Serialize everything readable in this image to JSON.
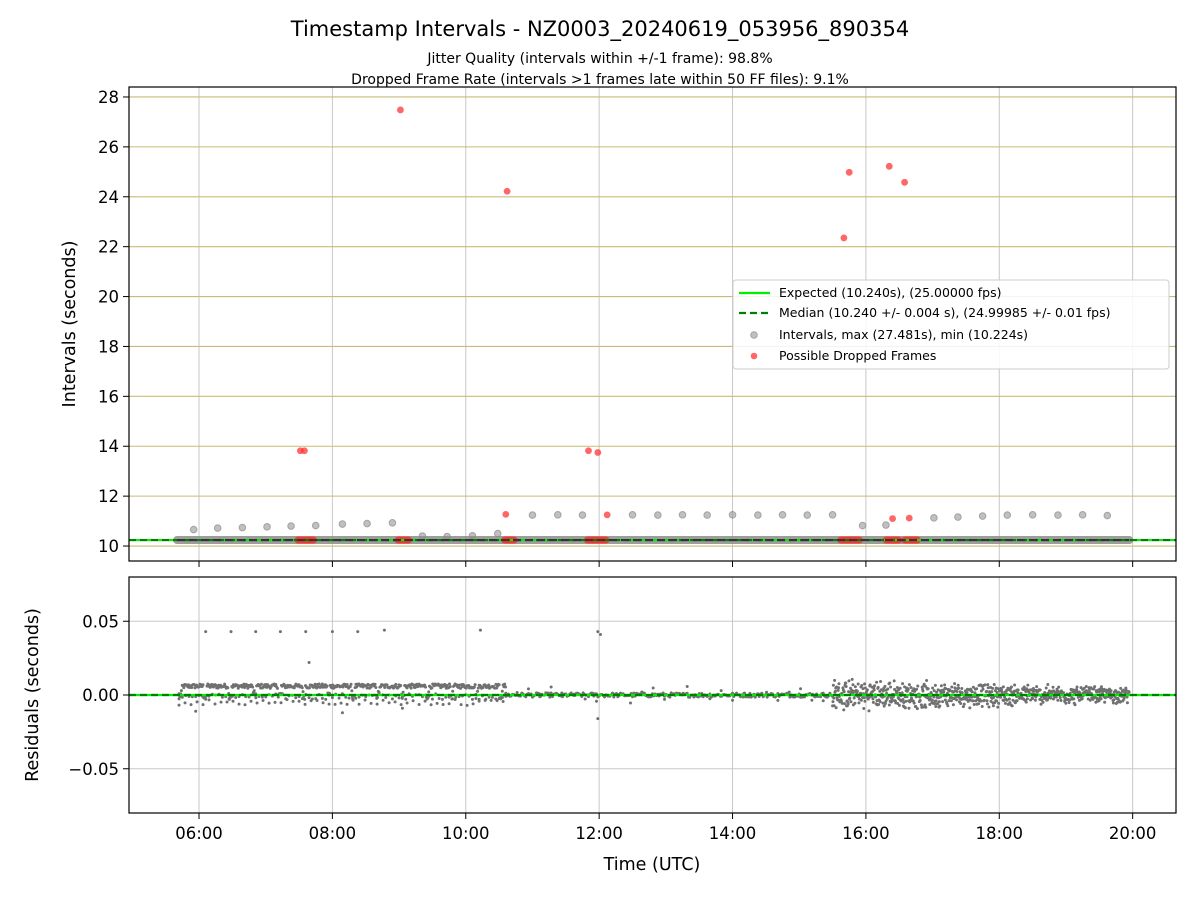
{
  "chart_data": {
    "title": "Timestamp Intervals - NZ0003_20240619_053956_890354",
    "subtitles": [
      "Jitter Quality (intervals within +/-1 frame): 98.8%",
      "Dropped Frame Rate (intervals >1 frames late within 50 FF files): 9.1%"
    ],
    "xlabel": "Time (UTC)",
    "xlim_hours": [
      4.95,
      20.65
    ],
    "x_ticks": [
      {
        "value": 6,
        "label": "06:00"
      },
      {
        "value": 8,
        "label": "08:00"
      },
      {
        "value": 10,
        "label": "10:00"
      },
      {
        "value": 12,
        "label": "12:00"
      },
      {
        "value": 14,
        "label": "14:00"
      },
      {
        "value": 16,
        "label": "16:00"
      },
      {
        "value": 18,
        "label": "18:00"
      },
      {
        "value": 20,
        "label": "20:00"
      }
    ],
    "panels": [
      {
        "type": "scatter",
        "ylabel": "Intervals (seconds)",
        "ylim": [
          9.4,
          28.4
        ],
        "y_ticks": [
          10,
          12,
          14,
          16,
          18,
          20,
          22,
          24,
          26,
          28
        ],
        "hlines": [
          {
            "name": "Expected (10.240s), (25.00000 fps)",
            "value": 10.24,
            "color": "#00ee00",
            "style": "solid"
          },
          {
            "name": "Median (10.240 +/- 0.004 s), (24.99985 +/- 0.01 fps)",
            "value": 10.24,
            "color": "#008000",
            "style": "dashed"
          }
        ],
        "series": [
          {
            "name": "Intervals, max (27.481s), min (10.224s)",
            "color": "#8c8c8c",
            "band": {
              "x_start": 5.67,
              "x_end": 19.95,
              "y": 10.24
            },
            "points": [
              [
                5.92,
                10.66
              ],
              [
                6.28,
                10.72
              ],
              [
                6.65,
                10.74
              ],
              [
                7.02,
                10.77
              ],
              [
                7.38,
                10.8
              ],
              [
                7.75,
                10.82
              ],
              [
                8.15,
                10.88
              ],
              [
                8.52,
                10.9
              ],
              [
                8.9,
                10.93
              ],
              [
                9.35,
                10.4
              ],
              [
                9.72,
                10.38
              ],
              [
                10.1,
                10.41
              ],
              [
                10.48,
                10.5
              ],
              [
                11.0,
                11.24
              ],
              [
                11.38,
                11.25
              ],
              [
                11.75,
                11.24
              ],
              [
                12.5,
                11.25
              ],
              [
                12.88,
                11.24
              ],
              [
                13.25,
                11.25
              ],
              [
                13.62,
                11.24
              ],
              [
                14.0,
                11.25
              ],
              [
                14.38,
                11.24
              ],
              [
                14.75,
                11.25
              ],
              [
                15.12,
                11.24
              ],
              [
                15.5,
                11.25
              ],
              [
                15.95,
                10.82
              ],
              [
                16.3,
                10.84
              ],
              [
                17.02,
                11.13
              ],
              [
                17.38,
                11.16
              ],
              [
                17.75,
                11.2
              ],
              [
                18.12,
                11.24
              ],
              [
                18.5,
                11.25
              ],
              [
                18.88,
                11.24
              ],
              [
                19.25,
                11.25
              ],
              [
                19.62,
                11.22
              ]
            ]
          },
          {
            "name": "Possible Dropped Frames",
            "color": "#ff3333",
            "points": [
              [
                7.52,
                13.82
              ],
              [
                7.58,
                13.82
              ],
              [
                9.02,
                27.48
              ],
              [
                10.62,
                24.22
              ],
              [
                10.6,
                11.27
              ],
              [
                11.84,
                13.82
              ],
              [
                11.98,
                13.75
              ],
              [
                12.12,
                11.25
              ],
              [
                15.75,
                24.98
              ],
              [
                15.67,
                22.35
              ],
              [
                16.35,
                25.22
              ],
              [
                16.58,
                24.58
              ],
              [
                16.4,
                11.1
              ],
              [
                16.65,
                11.12
              ]
            ],
            "clusters": [
              [
                7.48,
                7.72
              ],
              [
                8.98,
                9.15
              ],
              [
                10.58,
                10.74
              ],
              [
                11.82,
                12.12
              ],
              [
                15.62,
                15.92
              ],
              [
                16.3,
                16.5
              ],
              [
                16.58,
                16.78
              ]
            ]
          }
        ],
        "legend": {
          "placement": "center-right"
        }
      },
      {
        "type": "scatter",
        "ylabel": "Residuals (seconds)",
        "ylim": [
          -0.08,
          0.08
        ],
        "y_ticks": [
          {
            "value": 0.05,
            "label": "0.05"
          },
          {
            "value": 0.0,
            "label": "0.00"
          },
          {
            "value": -0.05,
            "label": "−0.05"
          }
        ],
        "series": [
          {
            "name": "",
            "color": "#707070",
            "regimes": [
              {
                "x_start": 5.7,
                "x_end": 10.6,
                "pattern": "sawtooth",
                "step_center": 0.004,
                "period_hours": 0.37,
                "high": 0.008
              },
              {
                "x_start": 10.6,
                "x_end": 15.5,
                "pattern": "near-zero",
                "spread": 0.003
              },
              {
                "x_start": 15.5,
                "x_end": 19.95,
                "pattern": "noisy",
                "spread_start": 0.012,
                "spread_end": 0.006
              }
            ],
            "outliers": [
              [
                6.1,
                0.043
              ],
              [
                6.48,
                0.043
              ],
              [
                6.85,
                0.043
              ],
              [
                7.22,
                0.043
              ],
              [
                7.6,
                0.043
              ],
              [
                8.0,
                0.043
              ],
              [
                8.38,
                0.043
              ],
              [
                8.78,
                0.044
              ],
              [
                10.22,
                0.044
              ],
              [
                11.98,
                0.043
              ],
              [
                12.02,
                0.041
              ],
              [
                7.65,
                0.022
              ],
              [
                11.98,
                -0.016
              ],
              [
                8.15,
                -0.012
              ],
              [
                5.95,
                -0.011
              ],
              [
                9.05,
                -0.009
              ]
            ]
          }
        ],
        "hlines": [
          {
            "value": 0.0,
            "color": "#00ee00",
            "style": "solid"
          },
          {
            "value": 0.0,
            "color": "#008000",
            "style": "dashed"
          }
        ]
      }
    ]
  }
}
